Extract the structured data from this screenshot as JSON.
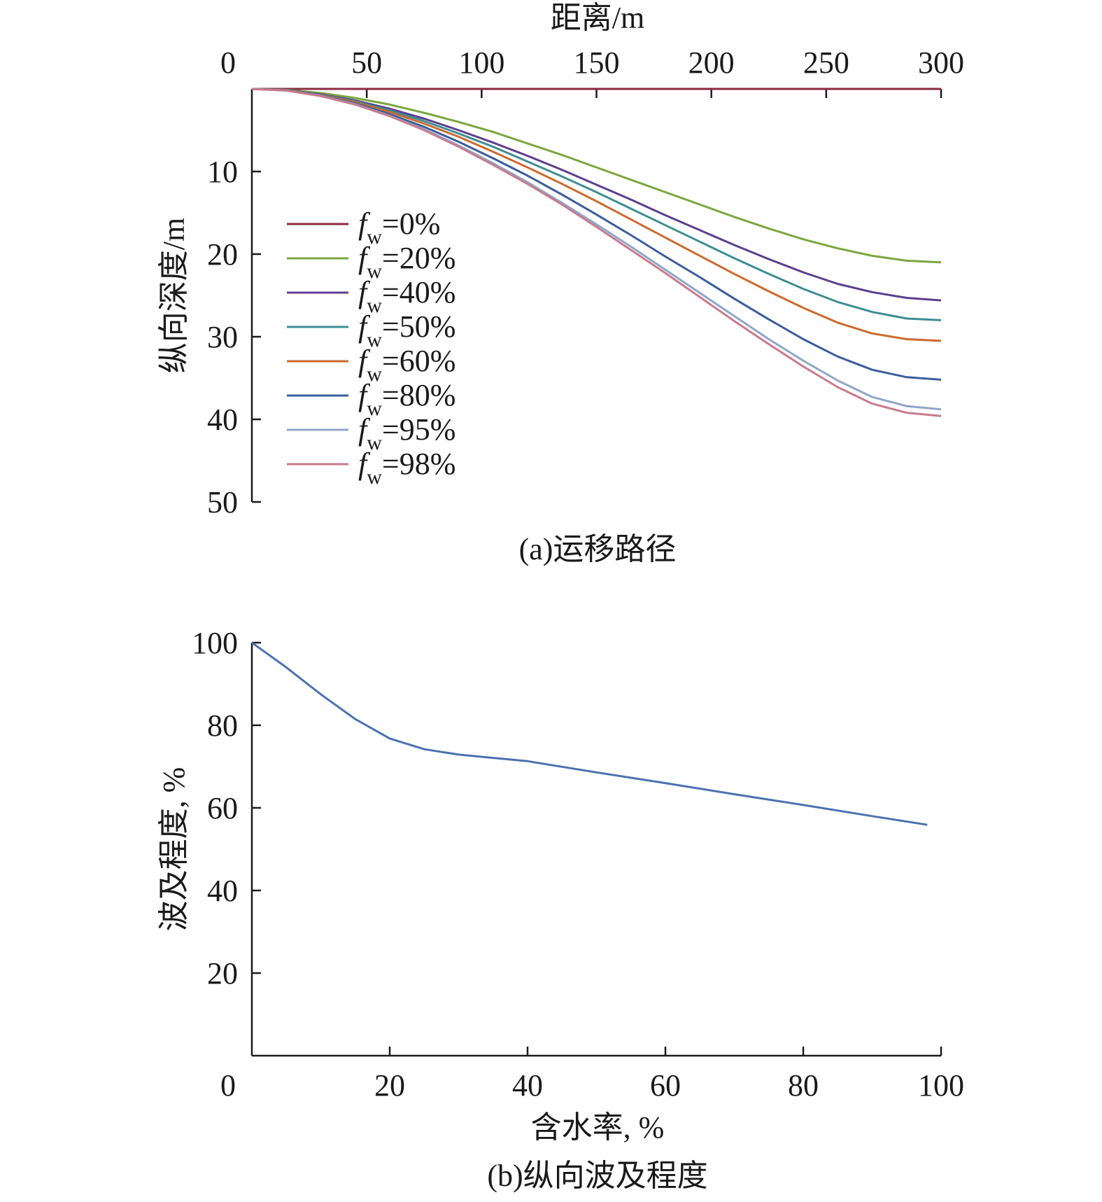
{
  "chart_data": [
    {
      "type": "line",
      "caption": "(a)运移路径",
      "xlabel": "距离/m",
      "ylabel": "纵向深度/m",
      "x_axis_position": "top",
      "y_inverted": true,
      "xlim": [
        0,
        300
      ],
      "ylim": [
        0,
        50
      ],
      "x_ticks": [
        "0",
        "50",
        "100",
        "150",
        "200",
        "250",
        "300"
      ],
      "y_ticks": [
        "10",
        "20",
        "30",
        "40",
        "50"
      ],
      "grid": false,
      "legend_position": "left",
      "legend_prefix": "f",
      "legend_subscript": "w",
      "x": [
        0,
        15,
        30,
        45,
        60,
        75,
        90,
        105,
        120,
        135,
        150,
        165,
        180,
        195,
        210,
        225,
        240,
        255,
        270,
        285,
        300
      ],
      "series": [
        {
          "name": "=0%",
          "color": "#8b2942",
          "values": [
            0,
            0,
            0,
            0,
            0,
            0,
            0,
            0,
            0,
            0,
            0,
            0,
            0,
            0,
            0,
            0,
            0,
            0,
            0,
            0,
            0
          ]
        },
        {
          "name": "=20%",
          "color": "#7aa63e",
          "values": [
            0,
            0.12,
            0.5,
            1.1,
            1.9,
            2.9,
            4.0,
            5.2,
            6.6,
            8.0,
            9.5,
            11.0,
            12.5,
            14.0,
            15.5,
            16.9,
            18.2,
            19.3,
            20.2,
            20.8,
            21.0
          ]
        },
        {
          "name": "=40%",
          "color": "#5c3f8f",
          "values": [
            0,
            0.15,
            0.65,
            1.4,
            2.4,
            3.6,
            5.0,
            6.5,
            8.1,
            9.8,
            11.6,
            13.4,
            15.3,
            17.1,
            18.9,
            20.6,
            22.2,
            23.6,
            24.6,
            25.3,
            25.6
          ]
        },
        {
          "name": "=50%",
          "color": "#3d8d94",
          "values": [
            0,
            0.16,
            0.7,
            1.5,
            2.6,
            3.9,
            5.4,
            7.0,
            8.8,
            10.6,
            12.5,
            14.5,
            16.5,
            18.5,
            20.5,
            22.4,
            24.2,
            25.8,
            27.0,
            27.8,
            28.0
          ]
        },
        {
          "name": "=60%",
          "color": "#cc6a2e",
          "values": [
            0,
            0.17,
            0.75,
            1.6,
            2.8,
            4.2,
            5.8,
            7.6,
            9.5,
            11.5,
            13.6,
            15.8,
            18.0,
            20.2,
            22.4,
            24.5,
            26.5,
            28.3,
            29.6,
            30.3,
            30.5
          ]
        },
        {
          "name": "=80%",
          "color": "#3a5e9c",
          "values": [
            0,
            0.18,
            0.8,
            1.75,
            3.05,
            4.6,
            6.4,
            8.4,
            10.5,
            12.8,
            15.2,
            17.7,
            20.3,
            22.8,
            25.4,
            27.9,
            30.3,
            32.4,
            34.0,
            34.9,
            35.2
          ]
        },
        {
          "name": "=95%",
          "color": "#8fa6c9",
          "values": [
            0,
            0.2,
            0.85,
            1.85,
            3.25,
            4.9,
            6.85,
            9.0,
            11.3,
            13.8,
            16.4,
            19.1,
            21.9,
            24.7,
            27.5,
            30.3,
            32.9,
            35.3,
            37.3,
            38.4,
            38.8
          ]
        },
        {
          "name": "=98%",
          "color": "#c97a8c",
          "values": [
            0,
            0.2,
            0.87,
            1.9,
            3.3,
            5.0,
            7.0,
            9.2,
            11.5,
            14.0,
            16.7,
            19.5,
            22.3,
            25.2,
            28.1,
            30.9,
            33.6,
            36.1,
            38.1,
            39.2,
            39.6
          ]
        }
      ]
    },
    {
      "type": "line",
      "caption": "(b)纵向波及程度",
      "xlabel": "含水率, %",
      "ylabel": "波及程度, %",
      "xlim": [
        0,
        100
      ],
      "ylim": [
        0,
        100
      ],
      "x_ticks": [
        "0",
        "20",
        "40",
        "60",
        "80",
        "100"
      ],
      "y_ticks": [
        "20",
        "40",
        "60",
        "80",
        "100"
      ],
      "grid": false,
      "x": [
        0,
        5,
        10,
        15,
        20,
        25,
        30,
        35,
        40,
        50,
        60,
        70,
        80,
        90,
        98
      ],
      "series": [
        {
          "color": "#4a72b0",
          "values": [
            100,
            94,
            87.5,
            81.5,
            76.8,
            74.2,
            72.9,
            72.1,
            71.3,
            68.6,
            66.0,
            63.3,
            60.7,
            58.0,
            55.9
          ]
        }
      ]
    }
  ]
}
